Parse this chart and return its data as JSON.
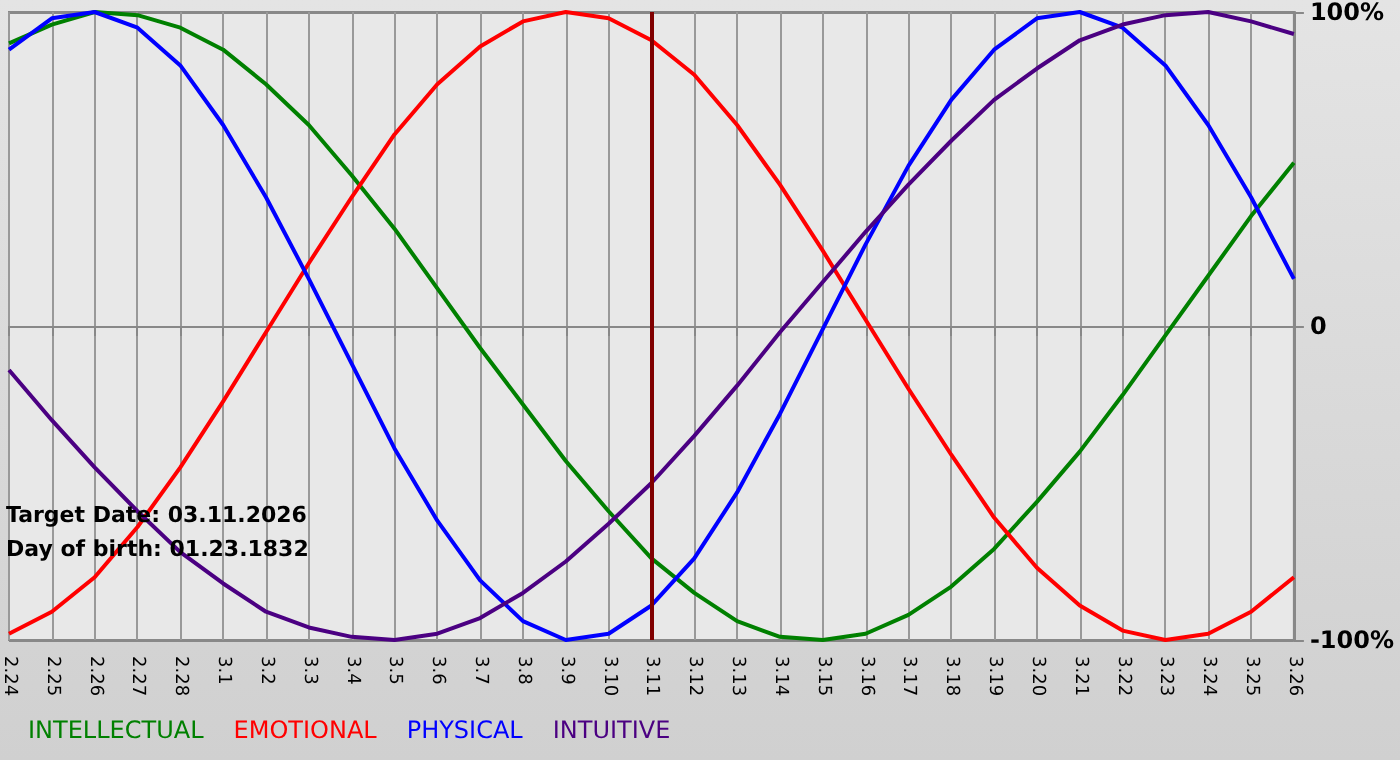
{
  "chart_data": {
    "type": "line",
    "categories": [
      "2.24",
      "2.25",
      "2.26",
      "2.27",
      "2.28",
      "3.1",
      "3.2",
      "3.3",
      "3.4",
      "3.5",
      "3.6",
      "3.7",
      "3.8",
      "3.9",
      "3.10",
      "3.11",
      "3.12",
      "3.13",
      "3.14",
      "3.15",
      "3.16",
      "3.17",
      "3.18",
      "3.19",
      "3.20",
      "3.21",
      "3.22",
      "3.23",
      "3.24",
      "3.25",
      "3.26"
    ],
    "series": [
      {
        "name": "INTELLECTUAL",
        "color": "#008000",
        "values": [
          90,
          96,
          100,
          99,
          95,
          88,
          77,
          64,
          48,
          31,
          12,
          -7,
          -25,
          -43,
          -59,
          -74,
          -85,
          -94,
          -99,
          -100,
          -98,
          -92,
          -83,
          -71,
          -56,
          -40,
          -22,
          -3,
          16,
          35,
          52
        ]
      },
      {
        "name": "EMOTIONAL",
        "color": "#ff0000",
        "values": [
          -98,
          -91,
          -80,
          -64,
          -45,
          -24,
          -2,
          20,
          41,
          61,
          77,
          89,
          97,
          100,
          98,
          91,
          80,
          64,
          45,
          24,
          2,
          -20,
          -41,
          -61,
          -77,
          -89,
          -97,
          -100,
          -98,
          -91,
          -80
        ]
      },
      {
        "name": "PHYSICAL",
        "color": "#0000ff",
        "values": [
          88,
          98,
          100,
          95,
          83,
          64,
          41,
          15,
          -12,
          -39,
          -62,
          -81,
          -94,
          -100,
          -98,
          -89,
          -74,
          -53,
          -28,
          -1,
          26,
          51,
          72,
          88,
          98,
          100,
          95,
          83,
          64,
          41,
          15
        ]
      },
      {
        "name": "INTUITIVE",
        "color": "#4b0082",
        "values": [
          -14,
          -30,
          -45,
          -59,
          -72,
          -82,
          -91,
          -96,
          -99,
          -100,
          -98,
          -93,
          -85,
          -75,
          -63,
          -50,
          -35,
          -19,
          -2,
          14,
          30,
          45,
          59,
          72,
          82,
          91,
          96,
          99,
          100,
          97,
          93
        ]
      }
    ],
    "ylim": [
      -100,
      100
    ],
    "yticks": [
      {
        "value": -100,
        "label": "-100%"
      },
      0,
      {
        "value": 100,
        "label": "100%"
      }
    ],
    "ref_lines": [
      {
        "axis": "x",
        "value": "3.11",
        "color": "#800000"
      }
    ],
    "annotations": [
      "Target Date: 03.11.2026",
      "Day of birth: 01.23.1832"
    ],
    "grid": true,
    "legend": "bottom left",
    "marker": "none",
    "line_style": "solid"
  }
}
